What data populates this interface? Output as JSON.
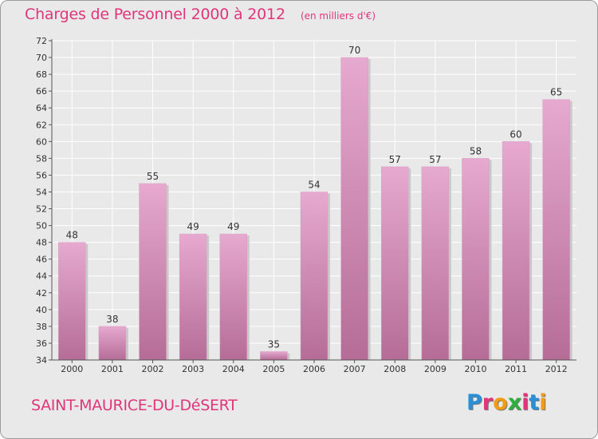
{
  "title": "Charges de Personnel 2000 à 2012",
  "unit_note": "(en milliers d'€)",
  "commune": "SAINT-MAURICE-DU-DéSERT",
  "logo": {
    "letters": [
      "P",
      "r",
      "o",
      "x",
      "i",
      "t",
      "i"
    ],
    "colors": [
      "#2a8fd6",
      "#e0357a",
      "#f39c12",
      "#2eae3f",
      "#e0357a",
      "#2a8fd6",
      "#f39c12"
    ]
  },
  "colors": {
    "bar_top": "#e6a9cf",
    "bar_bottom": "#b56d97",
    "accent": "#e0357a"
  },
  "chart_data": {
    "type": "bar",
    "categories": [
      "2000",
      "2001",
      "2002",
      "2003",
      "2004",
      "2005",
      "2006",
      "2007",
      "2008",
      "2009",
      "2010",
      "2011",
      "2012"
    ],
    "values": [
      48,
      38,
      55,
      49,
      49,
      35,
      54,
      70,
      57,
      57,
      58,
      60,
      65
    ],
    "yticks": [
      34,
      36,
      38,
      40,
      42,
      44,
      46,
      48,
      50,
      52,
      54,
      56,
      58,
      60,
      62,
      64,
      66,
      68,
      70,
      72
    ],
    "ylim": [
      34,
      72
    ],
    "grid": true,
    "data_labels": true
  }
}
